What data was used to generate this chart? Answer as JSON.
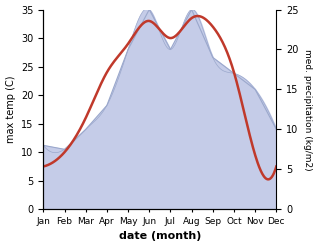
{
  "months": [
    "Jan",
    "Feb",
    "Mar",
    "Apr",
    "May",
    "Jun",
    "Jul",
    "Aug",
    "Sep",
    "Oct",
    "Nov",
    "Dec"
  ],
  "month_indices": [
    1,
    2,
    3,
    4,
    5,
    6,
    7,
    8,
    9,
    10,
    11,
    12
  ],
  "temp_max": [
    7.5,
    10.0,
    16.0,
    24.0,
    29.0,
    33.0,
    30.0,
    33.5,
    32.0,
    24.0,
    9.5,
    7.5
  ],
  "precipitation": [
    8.0,
    7.5,
    10.0,
    13.0,
    20.0,
    25.0,
    20.0,
    25.0,
    19.0,
    17.0,
    15.0,
    10.0
  ],
  "temp_color": "#c0392b",
  "precip_fill_color": "#c5cce8",
  "precip_edge_color": "#9ba8cc",
  "temp_ylim": [
    0,
    35
  ],
  "precip_ylim": [
    0,
    25
  ],
  "temp_yticks": [
    0,
    5,
    10,
    15,
    20,
    25,
    30,
    35
  ],
  "precip_yticks": [
    0,
    5,
    10,
    15,
    20,
    25
  ],
  "xlabel": "date (month)",
  "ylabel_left": "max temp (C)",
  "ylabel_right": "med. precipitation (kg/m2)",
  "temp_linewidth": 1.8,
  "background_color": "#ffffff"
}
